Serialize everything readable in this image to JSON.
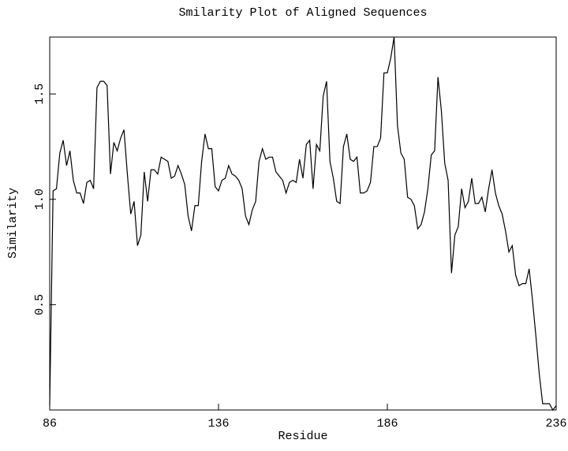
{
  "chart_data": {
    "type": "line",
    "title": "Smilarity Plot of Aligned Sequences",
    "x_label": "Residue",
    "y_label": "Similarity",
    "x": [
      86,
      87,
      88,
      89,
      90,
      91,
      92,
      93,
      94,
      95,
      96,
      97,
      98,
      99,
      100,
      101,
      102,
      103,
      104,
      105,
      106,
      107,
      108,
      109,
      110,
      111,
      112,
      113,
      114,
      115,
      116,
      117,
      118,
      119,
      120,
      121,
      122,
      123,
      124,
      125,
      126,
      127,
      128,
      129,
      130,
      131,
      132,
      133,
      134,
      135,
      136,
      137,
      138,
      139,
      140,
      141,
      142,
      143,
      144,
      145,
      146,
      147,
      148,
      149,
      150,
      151,
      152,
      153,
      154,
      155,
      156,
      157,
      158,
      159,
      160,
      161,
      162,
      163,
      164,
      165,
      166,
      167,
      168,
      169,
      170,
      171,
      172,
      173,
      174,
      175,
      176,
      177,
      178,
      179,
      180,
      181,
      182,
      183,
      184,
      185,
      186,
      187,
      188,
      189,
      190,
      191,
      192,
      193,
      194,
      195,
      196,
      197,
      198,
      199,
      200,
      201,
      202,
      203,
      204,
      205,
      206,
      207,
      208,
      209,
      210,
      211,
      212,
      213,
      214,
      215,
      216,
      217,
      218,
      219,
      220,
      221,
      222,
      223,
      224,
      225,
      226,
      227,
      228,
      229,
      230,
      231,
      232,
      233,
      234,
      235,
      236
    ],
    "values": [
      0.02,
      1.04,
      1.05,
      1.22,
      1.28,
      1.16,
      1.23,
      1.09,
      1.03,
      1.03,
      0.98,
      1.08,
      1.09,
      1.05,
      1.53,
      1.56,
      1.56,
      1.54,
      1.12,
      1.27,
      1.23,
      1.29,
      1.33,
      1.12,
      0.93,
      0.99,
      0.78,
      0.83,
      1.13,
      0.99,
      1.14,
      1.14,
      1.12,
      1.2,
      1.19,
      1.18,
      1.1,
      1.11,
      1.16,
      1.12,
      1.07,
      0.92,
      0.85,
      0.97,
      0.97,
      1.18,
      1.31,
      1.24,
      1.24,
      1.06,
      1.04,
      1.09,
      1.1,
      1.16,
      1.12,
      1.11,
      1.09,
      1.05,
      0.92,
      0.88,
      0.95,
      0.99,
      1.18,
      1.24,
      1.19,
      1.2,
      1.2,
      1.13,
      1.11,
      1.09,
      1.03,
      1.08,
      1.09,
      1.08,
      1.19,
      1.1,
      1.26,
      1.28,
      1.05,
      1.26,
      1.23,
      1.49,
      1.56,
      1.18,
      1.1,
      0.99,
      0.98,
      1.25,
      1.31,
      1.19,
      1.18,
      1.2,
      1.03,
      1.03,
      1.04,
      1.08,
      1.25,
      1.25,
      1.29,
      1.6,
      1.6,
      1.67,
      1.77,
      1.35,
      1.22,
      1.19,
      1.01,
      1.0,
      0.97,
      0.86,
      0.88,
      0.94,
      1.05,
      1.21,
      1.23,
      1.58,
      1.42,
      1.17,
      1.09,
      0.65,
      0.83,
      0.87,
      1.05,
      0.96,
      0.99,
      1.1,
      0.98,
      0.98,
      1.01,
      0.94,
      1.05,
      1.14,
      1.03,
      0.97,
      0.93,
      0.85,
      0.75,
      0.78,
      0.64,
      0.59,
      0.6,
      0.6,
      0.67,
      0.52,
      0.35,
      0.17,
      0.03,
      0.03,
      0.03,
      0.0,
      0.02
    ],
    "color": "#000000",
    "xlim": [
      86,
      236
    ],
    "xticks": [
      86,
      136,
      186,
      236
    ],
    "ylim": [
      0,
      1.77
    ],
    "yticks": [
      0.5,
      {
        "value": 1,
        "label": "1.0"
      },
      1.5
    ]
  }
}
